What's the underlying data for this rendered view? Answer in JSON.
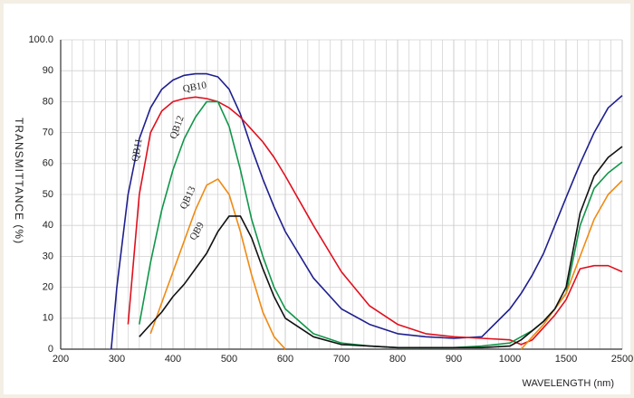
{
  "chart_data": {
    "type": "line",
    "x_label": "WAVELENGTH (nm)",
    "y_label": "TRANSMITTANCE  (%)",
    "x": [
      290,
      300,
      320,
      340,
      360,
      380,
      400,
      420,
      440,
      460,
      480,
      500,
      520,
      540,
      560,
      580,
      600,
      650,
      700,
      750,
      800,
      850,
      900,
      950,
      1000,
      1100,
      1200,
      1300,
      1400,
      1500,
      1750,
      2000,
      2250,
      2500
    ],
    "series": [
      {
        "name": "QB11",
        "color": "#1f1f8f",
        "values": [
          0,
          20,
          50,
          68,
          78,
          84,
          87,
          88.5,
          89,
          89,
          88,
          84,
          76,
          65,
          55,
          46,
          38,
          23,
          13,
          8,
          5,
          4,
          3.5,
          4,
          13,
          18,
          24,
          31,
          40,
          49,
          60,
          70,
          78,
          82
        ]
      },
      {
        "name": "QB10",
        "color": "#e0101e",
        "values": [
          null,
          null,
          8,
          50,
          70,
          77,
          80,
          81,
          81.5,
          81,
          80,
          78,
          75,
          71,
          67,
          62,
          56,
          40,
          25,
          14,
          8,
          5,
          4,
          3.5,
          3,
          1.5,
          3,
          7,
          11,
          16,
          26,
          27,
          27,
          25
        ]
      },
      {
        "name": "QB12",
        "color": "#11964a",
        "values": [
          null,
          null,
          null,
          8,
          28,
          45,
          58,
          68,
          75,
          80,
          80,
          72,
          58,
          42,
          30,
          20,
          13,
          5,
          2,
          1,
          0.5,
          0.5,
          0.5,
          1,
          2,
          4,
          6,
          9,
          13,
          18,
          40,
          52,
          57,
          60.5
        ]
      },
      {
        "name": "QB13",
        "color": "#f08a12",
        "values": [
          null,
          null,
          null,
          null,
          5,
          15,
          25,
          35,
          45,
          53,
          55,
          50,
          38,
          24,
          12,
          4,
          0,
          null,
          null,
          null,
          null,
          null,
          null,
          null,
          null,
          0,
          4,
          8,
          13,
          18,
          30,
          42,
          50,
          54.5
        ]
      },
      {
        "name": "QB9",
        "color": "#111111",
        "values": [
          null,
          null,
          null,
          4,
          8,
          12,
          17,
          21,
          26,
          31,
          38,
          43,
          43,
          36,
          26,
          17,
          10,
          4,
          1.5,
          1,
          0.5,
          0.5,
          0.5,
          0.5,
          1,
          3,
          6,
          9,
          13,
          20,
          44,
          56,
          62,
          65.5
        ]
      }
    ],
    "xlim": [
      200,
      2500
    ],
    "xticks": [
      200,
      300,
      400,
      500,
      600,
      700,
      800,
      900,
      1000,
      1500,
      2500
    ],
    "ylim": [
      0,
      100
    ],
    "yticks": [
      0,
      10,
      20,
      30,
      40,
      50,
      60,
      70,
      80,
      90,
      {
        "value": 100,
        "label": "100.0"
      }
    ],
    "grid": true
  }
}
